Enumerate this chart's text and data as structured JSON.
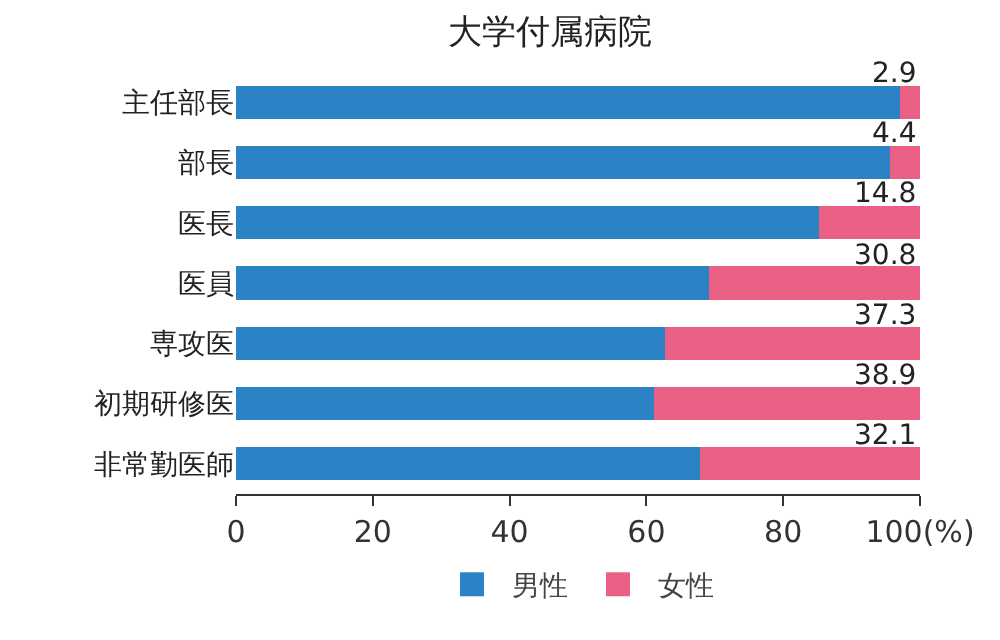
{
  "chart_data": {
    "type": "bar",
    "orientation": "horizontal",
    "stacked": true,
    "title": "大学付属病院",
    "categories": [
      "主任部長",
      "部長",
      "医長",
      "医員",
      "専攻医",
      "初期研修医",
      "非常勤医師"
    ],
    "series": [
      {
        "name": "男性",
        "color": "#2b83c6",
        "values": [
          97.1,
          95.6,
          85.2,
          69.2,
          62.7,
          61.1,
          67.9
        ]
      },
      {
        "name": "女性",
        "color": "#ea6085",
        "values": [
          2.9,
          4.4,
          14.8,
          30.8,
          37.3,
          38.9,
          32.1
        ],
        "value_labels": [
          "2.9",
          "4.4",
          "14.8",
          "30.8",
          "37.3",
          "38.9",
          "32.1"
        ]
      }
    ],
    "xlim": [
      0,
      100
    ],
    "xticks": [
      0,
      20,
      40,
      60,
      80,
      {
        "value": 100,
        "label": "100(%)"
      }
    ],
    "grid": false,
    "legend": "bottom"
  }
}
